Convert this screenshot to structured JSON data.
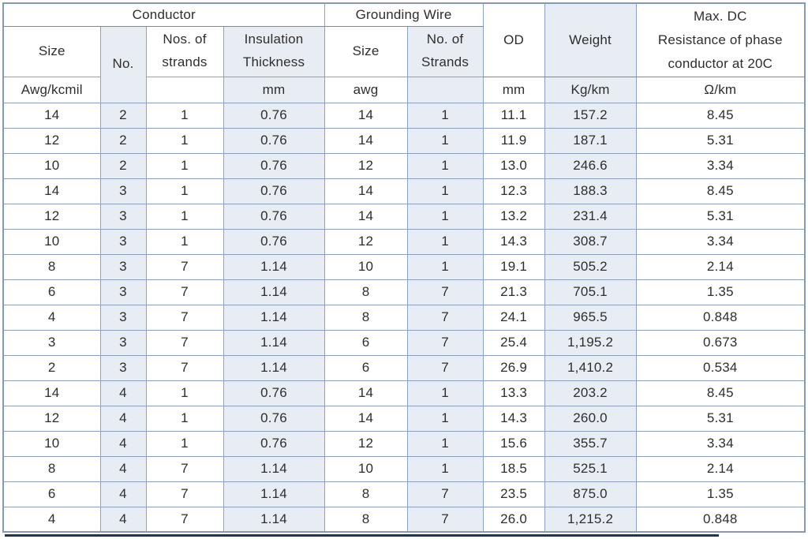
{
  "table": {
    "header": {
      "conductor_group": "Conductor",
      "grounding_wire_group": "Grounding Wire",
      "od": "OD",
      "weight": "Weight",
      "max_dc_resistance": "Max. DC\nResistance of phase\nconductor at 20C",
      "conductor_size": "Size",
      "conductor_no": "No.",
      "nos_of_strands": "Nos. of\nstrands",
      "insulation_thickness": "Insulation\nThickness",
      "grounding_size": "Size",
      "grounding_no_of_strands": "No. of\nStrands"
    },
    "units": {
      "conductor_size": "Awg/kcmil",
      "nos_of_strands": "",
      "insulation_thickness": "mm",
      "grounding_size": "awg",
      "grounding_no_of_strands": "",
      "od": "mm",
      "weight": "Kg/km",
      "resistance": "Ω/km"
    },
    "columns": [
      "Conductor Size (Awg/kcmil)",
      "Conductor No.",
      "Nos. of strands",
      "Insulation Thickness (mm)",
      "Grounding Wire Size (awg)",
      "Grounding Wire No. of Strands",
      "OD (mm)",
      "Weight (Kg/km)",
      "Max. DC Resistance of phase conductor at 20C (Ω/km)"
    ],
    "rows": [
      [
        "14",
        "2",
        "1",
        "0.76",
        "14",
        "1",
        "11.1",
        "157.2",
        "8.45"
      ],
      [
        "12",
        "2",
        "1",
        "0.76",
        "14",
        "1",
        "11.9",
        "187.1",
        "5.31"
      ],
      [
        "10",
        "2",
        "1",
        "0.76",
        "12",
        "1",
        "13.0",
        "246.6",
        "3.34"
      ],
      [
        "14",
        "3",
        "1",
        "0.76",
        "14",
        "1",
        "12.3",
        "188.3",
        "8.45"
      ],
      [
        "12",
        "3",
        "1",
        "0.76",
        "14",
        "1",
        "13.2",
        "231.4",
        "5.31"
      ],
      [
        "10",
        "3",
        "1",
        "0.76",
        "12",
        "1",
        "14.3",
        "308.7",
        "3.34"
      ],
      [
        "8",
        "3",
        "7",
        "1.14",
        "10",
        "1",
        "19.1",
        "505.2",
        "2.14"
      ],
      [
        "6",
        "3",
        "7",
        "1.14",
        "8",
        "7",
        "21.3",
        "705.1",
        "1.35"
      ],
      [
        "4",
        "3",
        "7",
        "1.14",
        "8",
        "7",
        "24.1",
        "965.5",
        "0.848"
      ],
      [
        "3",
        "3",
        "7",
        "1.14",
        "6",
        "7",
        "25.4",
        "1,195.2",
        "0.673"
      ],
      [
        "2",
        "3",
        "7",
        "1.14",
        "6",
        "7",
        "26.9",
        "1,410.2",
        "0.534"
      ],
      [
        "14",
        "4",
        "1",
        "0.76",
        "14",
        "1",
        "13.3",
        "203.2",
        "8.45"
      ],
      [
        "12",
        "4",
        "1",
        "0.76",
        "14",
        "1",
        "14.3",
        "260.0",
        "5.31"
      ],
      [
        "10",
        "4",
        "1",
        "0.76",
        "12",
        "1",
        "15.6",
        "355.7",
        "3.34"
      ],
      [
        "8",
        "4",
        "7",
        "1.14",
        "10",
        "1",
        "18.5",
        "525.1",
        "2.14"
      ],
      [
        "6",
        "4",
        "7",
        "1.14",
        "8",
        "7",
        "23.5",
        "875.0",
        "1.35"
      ],
      [
        "4",
        "4",
        "7",
        "1.14",
        "8",
        "7",
        "26.0",
        "1,215.2",
        "0.848"
      ]
    ]
  },
  "colors": {
    "shaded_cell": "#e8edf4",
    "grid_border": "#8ba1c7",
    "outer_border": "#8498bb",
    "bottom_accent_line": "#1c3557",
    "text": "#2e2e2e"
  }
}
